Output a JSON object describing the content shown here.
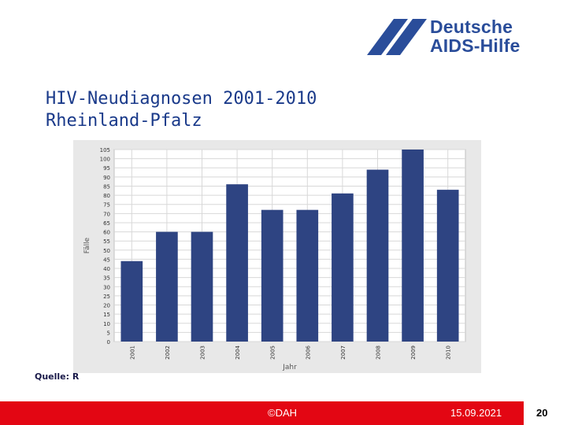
{
  "logo": {
    "line1": "Deutsche",
    "line2": "AIDS-Hilfe",
    "color": "#2a4d9a"
  },
  "slide": {
    "title_line1": "HIV-Neudiagnosen 2001-2010",
    "title_line2": "Rheinland-Pfalz"
  },
  "source": {
    "label": "Quelle: R"
  },
  "footer": {
    "copyright": "©DAH",
    "date": "15.09.2021",
    "page": "20",
    "bar_color": "#e30613"
  },
  "chart_data": {
    "type": "bar",
    "title": "",
    "xlabel": "Jahr",
    "ylabel": "Fälle",
    "categories": [
      "2001",
      "2002",
      "2003",
      "2004",
      "2005",
      "2006",
      "2007",
      "2008",
      "2009",
      "2010"
    ],
    "values": [
      44,
      60,
      60,
      86,
      72,
      72,
      81,
      94,
      108,
      83
    ],
    "ylim": [
      0,
      105
    ],
    "yticks": [
      0,
      5,
      10,
      15,
      20,
      25,
      30,
      35,
      40,
      45,
      50,
      55,
      60,
      65,
      70,
      75,
      80,
      85,
      90,
      95,
      100,
      105
    ],
    "grid": true,
    "bar_color": "#2e4482"
  }
}
